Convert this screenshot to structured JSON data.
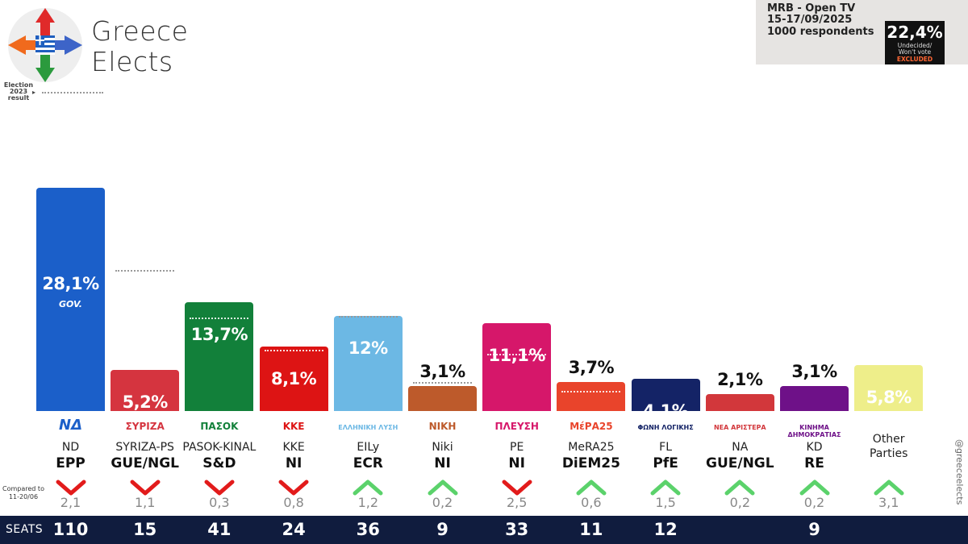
{
  "brand": {
    "line1": "Greece",
    "line2": "Elects"
  },
  "legend": {
    "label": "Election\n2023\nresult",
    "line1": "Election",
    "line2": "2023",
    "line3": "result",
    "arrow": "▸"
  },
  "poll": {
    "pollster": "MRB - Open TV",
    "dates": "15-17/09/2025",
    "sample": "1000 respondents",
    "undecided_pct": "22,4%",
    "undecided_label1": "Undecided/",
    "undecided_label2": "Won't vote",
    "excluded": "EXCLUDED"
  },
  "compared_label": {
    "line1": "Compared to",
    "line2": "11-20/06"
  },
  "seats_label": "SEATS",
  "handle": "@greeceelects",
  "colors": {
    "ND": "#1b5fc9",
    "SYRIZA": "#d5343f",
    "PASOK": "#12803a",
    "KKE": "#dd1414",
    "EL": "#6cb8e4",
    "NIKI": "#bd5a2b",
    "PE": "#d6176a",
    "MERA": "#e9442b",
    "FL": "#142366",
    "NA": "#d2373b",
    "KD": "#6e1188",
    "OTH": "#eeee8a",
    "up": "#5bd26b",
    "down": "#e21b1b"
  },
  "chart_data": {
    "type": "bar",
    "title": "",
    "xlabel": "",
    "ylabel": "",
    "ylim": [
      0,
      28.1
    ],
    "categories": [
      "ND",
      "SYRIZA-PS",
      "PASOK-KINAL",
      "KKE",
      "EILy",
      "Niki",
      "PE",
      "MeRA25",
      "FL",
      "NA",
      "KD",
      "Other Parties"
    ],
    "series": [
      {
        "values": [
          28.1,
          5.2,
          13.7,
          8.1,
          12,
          3.1,
          11.1,
          3.7,
          4.1,
          2.1,
          3.1,
          5.8
        ]
      }
    ],
    "election_2023": [
      null,
      17.8,
      11.8,
      7.7,
      12,
      3.7,
      7.2,
      2.5,
      null,
      null,
      null,
      null
    ],
    "parties": [
      {
        "id": "ND",
        "logo": "ΝΔ",
        "name": "ND",
        "group": "EPP",
        "value_label": "28,1%",
        "sub": "GOV.",
        "change": "2,1",
        "direction": "down",
        "seats": "110",
        "color": "#1b5fc9",
        "text_color": "#ffffff"
      },
      {
        "id": "SYRIZA",
        "logo": "ΣΥΡΙΖΑ",
        "name": "SYRIZA-PS",
        "group": "GUE/NGL",
        "value_label": "5,2%",
        "sub": "",
        "change": "1,1",
        "direction": "down",
        "seats": "15",
        "color": "#d5343f",
        "text_color": "#ffffff"
      },
      {
        "id": "PASOK",
        "logo": "ΠΑΣΟΚ",
        "name": "PASOK-KINAL",
        "group": "S&D",
        "value_label": "13,7%",
        "sub": "",
        "change": "0,3",
        "direction": "down",
        "seats": "41",
        "color": "#12803a",
        "text_color": "#ffffff"
      },
      {
        "id": "KKE",
        "logo": "ΚΚΕ",
        "name": "KKE",
        "group": "NI",
        "value_label": "8,1%",
        "sub": "",
        "change": "0,8",
        "direction": "down",
        "seats": "24",
        "color": "#dd1414",
        "text_color": "#ffffff"
      },
      {
        "id": "EL",
        "logo": "ΕΛΛΗΝΙΚΗ ΛΥΣΗ",
        "name": "EILy",
        "group": "ECR",
        "value_label": "12%",
        "sub": "",
        "change": "1,2",
        "direction": "up",
        "seats": "36",
        "color": "#6cb8e4",
        "text_color": "#ffffff"
      },
      {
        "id": "NIKI",
        "logo": "ΝΙΚΗ",
        "name": "Niki",
        "group": "NI",
        "value_label": "3,1%",
        "sub": "",
        "change": "0,2",
        "direction": "up",
        "seats": "9",
        "color": "#bd5a2b",
        "text_color": "#111111"
      },
      {
        "id": "PE",
        "logo": "ΠΛΕΥΣΗ",
        "name": "PE",
        "group": "NI",
        "value_label": "11,1%",
        "sub": "",
        "change": "2,5",
        "direction": "down",
        "seats": "33",
        "color": "#d6176a",
        "text_color": "#ffffff"
      },
      {
        "id": "MERA",
        "logo": "ΜέΡΑ25",
        "name": "MeRA25",
        "group": "DiEM25",
        "value_label": "3,7%",
        "sub": "",
        "change": "0,6",
        "direction": "up",
        "seats": "11",
        "color": "#e9442b",
        "text_color": "#111111"
      },
      {
        "id": "FL",
        "logo": "ΦΩΝΗ ΛΟΓΙΚΗΣ",
        "name": "FL",
        "group": "PfE",
        "value_label": "4,1%",
        "sub": "",
        "change": "1,5",
        "direction": "up",
        "seats": "12",
        "color": "#142366",
        "text_color": "#ffffff"
      },
      {
        "id": "NA",
        "logo": "ΝΕΑ ΑΡΙΣΤΕΡΑ",
        "name": "NA",
        "group": "GUE/NGL",
        "value_label": "2,1%",
        "sub": "",
        "change": "0,2",
        "direction": "up",
        "seats": "",
        "color": "#d2373b",
        "text_color": "#111111"
      },
      {
        "id": "KD",
        "logo": "ΚΙΝΗΜΑ ΔΗΜΟΚΡΑΤΙΑΣ",
        "name": "KD",
        "group": "RE",
        "value_label": "3,1%",
        "sub": "",
        "change": "0,2",
        "direction": "up",
        "seats": "9",
        "color": "#6e1188",
        "text_color": "#111111"
      },
      {
        "id": "OTH",
        "logo": "",
        "name": "Other\nParties",
        "group": "",
        "value_label": "5,8%",
        "sub": "",
        "change": "3,1",
        "direction": "up",
        "seats": "",
        "color": "#eeee8a",
        "text_color": "#ffffff"
      }
    ]
  }
}
